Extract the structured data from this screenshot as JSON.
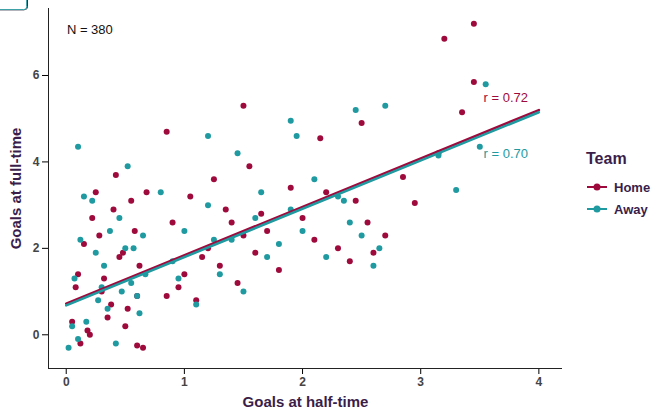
{
  "chart_data": {
    "type": "scatter",
    "x_label": "Goals at half-time",
    "y_label": "Goals at full-time",
    "xlim": [
      -0.15,
      4.2
    ],
    "xticks": [
      0,
      1,
      2,
      3,
      4
    ],
    "ylim": [
      -0.78,
      7.55
    ],
    "yticks": [
      0,
      2,
      4,
      6
    ],
    "grid": false,
    "legend_title": "Team",
    "legend": "right",
    "series": [
      {
        "name": "Home",
        "color": "#9e0a3c",
        "marker": "circle",
        "x": [
          0.05,
          0.1,
          0.15,
          0.2,
          0.25,
          0.3,
          0.35,
          0.4,
          0.45,
          0.5,
          0.55,
          0.6,
          0.65,
          0.62,
          0.58,
          0.12,
          0.22,
          0.32,
          0.42,
          0.52,
          0.08,
          0.18,
          0.28,
          0.38,
          0.48,
          0.6,
          0.68,
          0.85,
          0.9,
          1.0,
          1.05,
          1.1,
          1.2,
          1.25,
          1.3,
          1.4,
          1.45,
          1.5,
          1.55,
          1.6,
          1.65,
          0.95,
          1.15,
          1.35,
          1.7,
          1.8,
          1.9,
          2.0,
          2.1,
          2.2,
          2.3,
          2.4,
          2.5,
          2.55,
          2.6,
          2.7,
          2.15,
          2.45,
          1.5,
          0.85,
          2.85,
          2.95,
          3.15,
          3.2,
          3.35,
          3.45,
          3.45
        ],
        "y": [
          0.3,
          1.4,
          2.1,
          0,
          3.3,
          1.0,
          0.4,
          2.9,
          1.8,
          0.2,
          3.1,
          0.9,
          -0.3,
          1.6,
          2.4,
          -0.2,
          2.7,
          1.3,
          3.7,
          0.6,
          1.1,
          0.1,
          2.3,
          0.7,
          1.9,
          -0.25,
          3.3,
          0.9,
          2.6,
          1.4,
          3.2,
          0.8,
          2.0,
          3.6,
          1.6,
          2.6,
          1.2,
          2.3,
          3.9,
          1.9,
          2.8,
          1.1,
          1.8,
          2.9,
          2.4,
          1.5,
          3.4,
          2.7,
          2.2,
          3.3,
          2.0,
          1.7,
          4.9,
          2.6,
          1.9,
          2.3,
          4.55,
          3.1,
          5.3,
          4.7,
          3.65,
          3.05,
          4.2,
          6.85,
          5.15,
          5.85,
          7.2
        ],
        "fit": {
          "x": [
            0,
            4
          ],
          "y": [
            0.72,
            5.2
          ]
        }
      },
      {
        "name": "Away",
        "color": "#1e9aa0",
        "marker": "circle",
        "x": [
          0.02,
          0.07,
          0.12,
          0.17,
          0.22,
          0.27,
          0.32,
          0.37,
          0.42,
          0.47,
          0.52,
          0.57,
          0.62,
          0.67,
          0.05,
          0.15,
          0.25,
          0.35,
          0.45,
          0.55,
          0.65,
          0.1,
          0.3,
          0.5,
          0.6,
          0.8,
          0.9,
          1.0,
          1.1,
          1.2,
          1.3,
          1.4,
          1.5,
          1.6,
          1.7,
          0.95,
          1.25,
          1.45,
          1.65,
          1.8,
          1.9,
          2.0,
          2.1,
          2.2,
          2.3,
          2.4,
          2.5,
          2.6,
          2.65,
          2.35,
          1.9,
          1.95,
          1.2,
          0.1,
          2.45,
          2.7,
          3.15,
          3.3,
          3.5,
          3.55
        ],
        "y": [
          -0.3,
          1.3,
          2.2,
          0.3,
          3.1,
          0.8,
          1.6,
          2.4,
          -0.2,
          1.0,
          3.9,
          2.0,
          0.5,
          1.4,
          0.2,
          3.2,
          1.9,
          0.6,
          2.7,
          1.2,
          2.3,
          -0.1,
          1.1,
          2.0,
          0.9,
          3.3,
          1.7,
          2.4,
          0.7,
          3.0,
          1.4,
          2.2,
          1.0,
          2.7,
          1.8,
          1.3,
          2.2,
          4.2,
          3.3,
          2.1,
          2.9,
          2.4,
          3.6,
          1.8,
          3.2,
          2.6,
          2.3,
          1.6,
          2.0,
          3.1,
          4.95,
          4.6,
          4.6,
          4.35,
          5.2,
          5.3,
          4.15,
          3.35,
          4.35,
          5.8
        ],
        "fit": {
          "x": [
            0,
            4
          ],
          "y": [
            0.68,
            5.15
          ]
        }
      }
    ],
    "annotations": [
      {
        "text": "N = 380",
        "x": 0.2,
        "y": 7.06
      },
      {
        "text": "r = 0.72",
        "x": 3.72,
        "y": 5.49,
        "series": "Home"
      },
      {
        "text": "r = 0.70",
        "x": 3.72,
        "y": 4.19,
        "series": "Away"
      }
    ]
  }
}
